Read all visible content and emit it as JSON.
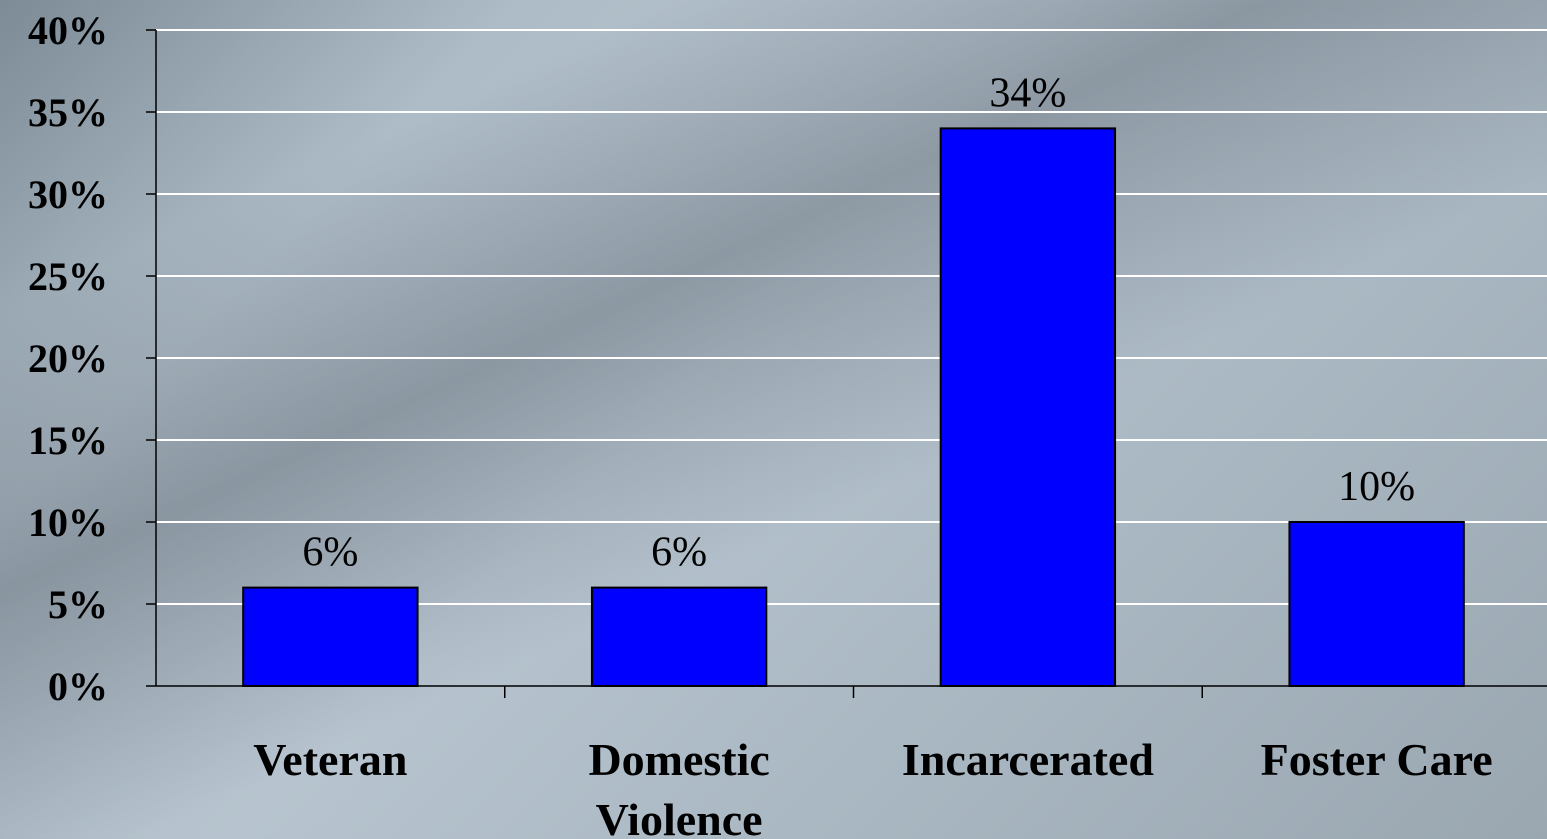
{
  "chart_data": {
    "type": "bar",
    "title": "",
    "xlabel": "",
    "ylabel": "",
    "categories": [
      "Veteran",
      "Domestic Violence",
      "Incarcerated",
      "Foster Care"
    ],
    "category_lines": [
      [
        "Veteran"
      ],
      [
        "Domestic",
        "Violence"
      ],
      [
        "Incarcerated"
      ],
      [
        "Foster Care"
      ]
    ],
    "values": [
      6,
      6,
      34,
      10
    ],
    "data_labels": [
      "6%",
      "6%",
      "34%",
      "10%"
    ],
    "ylim": [
      0,
      40
    ],
    "yticks": [
      0,
      5,
      10,
      15,
      20,
      25,
      30,
      35,
      40
    ],
    "ytick_labels": [
      "0%",
      "5%",
      "10%",
      "15%",
      "20%",
      "25%",
      "30%",
      "35%",
      "40%"
    ],
    "grid": true,
    "legend": "none",
    "colors": {
      "bar_fill": "#0000ff",
      "bar_stroke": "#000000",
      "gridline": "#ffffff",
      "axis": "#000000",
      "text": "#000000"
    }
  }
}
